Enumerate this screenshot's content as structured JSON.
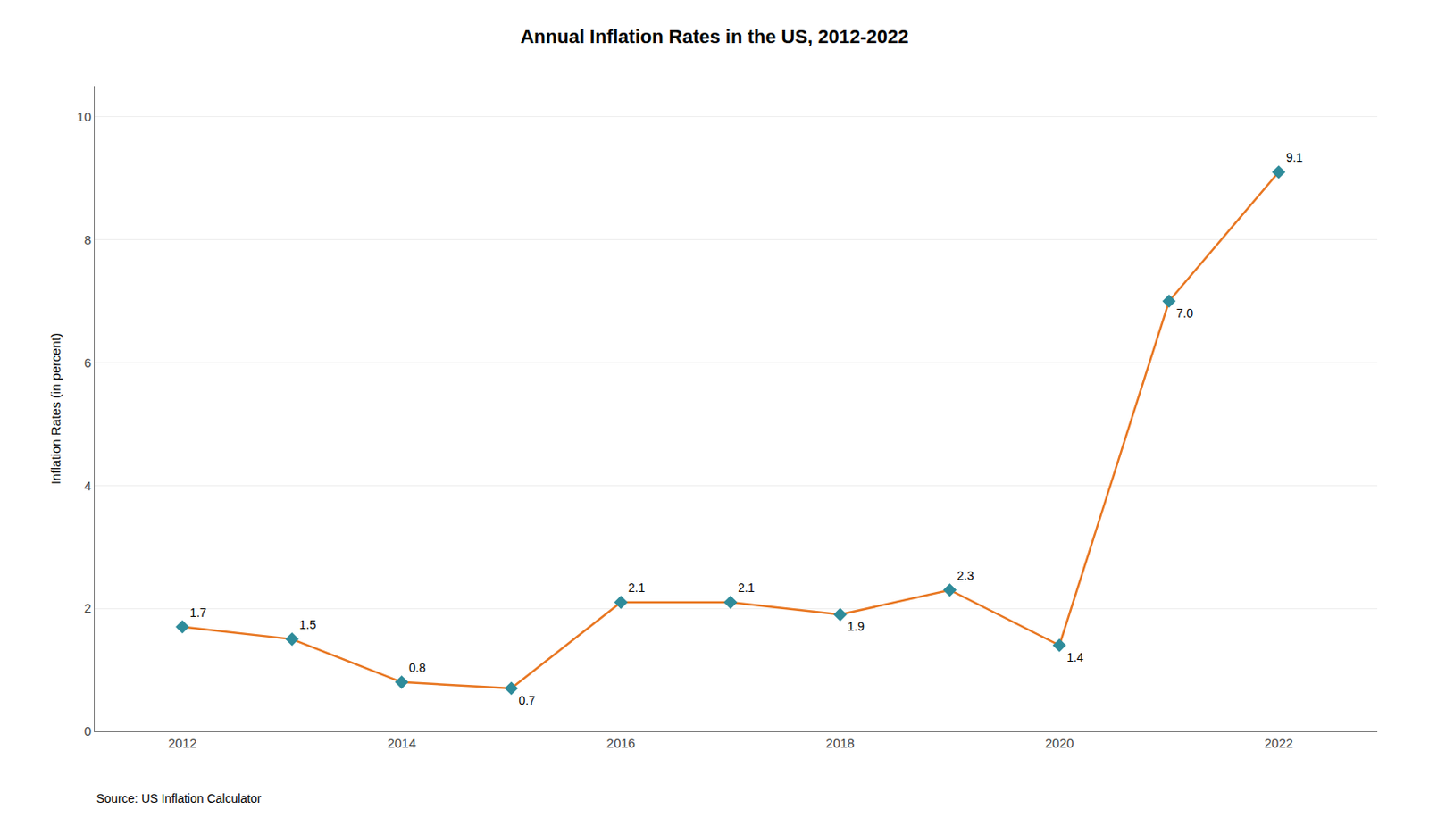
{
  "chart_data": {
    "type": "line",
    "title": "Annual Inflation Rates in the US, 2012-2022",
    "ylabel": "Inflation Rates (in percent)",
    "annotations": [
      "Source: US Inflation Calculator"
    ],
    "x": [
      2012,
      2013,
      2014,
      2015,
      2016,
      2017,
      2018,
      2019,
      2020,
      2021,
      2022
    ],
    "values": [
      1.7,
      1.5,
      0.8,
      0.7,
      2.1,
      2.1,
      1.9,
      2.3,
      1.4,
      7.0,
      9.1
    ],
    "value_labels": [
      "1.7",
      "1.5",
      "0.8",
      "0.7",
      "2.1",
      "2.1",
      "1.9",
      "2.3",
      "1.4",
      "7.0",
      "9.1"
    ],
    "data_labels": true,
    "color": "#E87722",
    "colors": [
      "#2E8B9A",
      "#2E8B9A",
      "#2E8B9A",
      "#2E8B9A",
      "#2E8B9A",
      "#2E8B9A",
      "#2E8B9A",
      "#2E8B9A",
      "#2E8B9A",
      "#2E8B9A",
      "#2E8B9A"
    ],
    "marker": "diamond",
    "xlim": [
      2011.2,
      2022.9
    ],
    "xticks": [
      2012,
      2014,
      2016,
      2018,
      2020,
      2022
    ],
    "ylim": [
      0,
      10.5
    ],
    "yticks": [
      0,
      2,
      4,
      6,
      8,
      10
    ],
    "grid": true
  }
}
